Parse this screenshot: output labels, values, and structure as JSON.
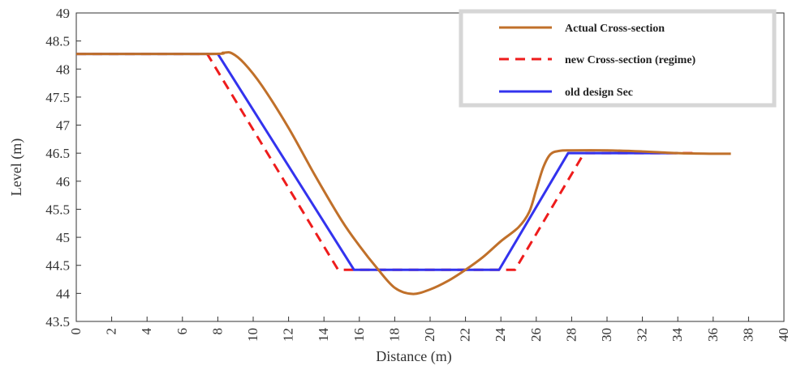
{
  "chart_data": {
    "type": "line",
    "title": "",
    "xlabel": "Distance (m)",
    "ylabel": "Level (m)",
    "xlim": [
      0,
      40
    ],
    "ylim": [
      43.5,
      49
    ],
    "x_ticks": [
      0,
      2,
      4,
      6,
      8,
      10,
      12,
      14,
      16,
      18,
      20,
      22,
      24,
      26,
      28,
      30,
      32,
      34,
      36,
      38,
      40
    ],
    "y_ticks": [
      43.5,
      44,
      44.5,
      45,
      45.5,
      46,
      46.5,
      47,
      47.5,
      48,
      48.5,
      49
    ],
    "grid": false,
    "legend_position": "top-right",
    "series": [
      {
        "name": "Actual Cross-section",
        "style": "solid",
        "color": "#c0702a",
        "smooth": true,
        "points": [
          [
            0,
            48.27
          ],
          [
            7.5,
            48.27
          ],
          [
            8.3,
            48.29
          ],
          [
            8.8,
            48.28
          ],
          [
            9.5,
            48.1
          ],
          [
            10.5,
            47.7
          ],
          [
            12,
            46.95
          ],
          [
            13.5,
            46.1
          ],
          [
            15,
            45.3
          ],
          [
            16,
            44.85
          ],
          [
            17,
            44.45
          ],
          [
            18,
            44.1
          ],
          [
            19,
            43.99
          ],
          [
            20,
            44.07
          ],
          [
            21,
            44.22
          ],
          [
            22,
            44.42
          ],
          [
            23,
            44.65
          ],
          [
            24,
            44.93
          ],
          [
            25,
            45.18
          ],
          [
            25.6,
            45.45
          ],
          [
            26,
            45.85
          ],
          [
            26.4,
            46.25
          ],
          [
            26.8,
            46.48
          ],
          [
            27.3,
            46.54
          ],
          [
            28,
            46.55
          ],
          [
            30,
            46.55
          ],
          [
            32,
            46.53
          ],
          [
            34,
            46.5
          ],
          [
            36,
            46.49
          ],
          [
            37,
            46.49
          ]
        ]
      },
      {
        "name": "new Cross-section (regime)",
        "style": "dashed",
        "color": "#ee1c1c",
        "smooth": false,
        "points": [
          [
            0,
            48.27
          ],
          [
            7.4,
            48.27
          ],
          [
            14.8,
            44.42
          ],
          [
            24.8,
            44.42
          ],
          [
            28.7,
            46.5
          ],
          [
            35,
            46.5
          ]
        ]
      },
      {
        "name": "old design  Sec",
        "style": "solid",
        "color": "#3333ee",
        "smooth": false,
        "points": [
          [
            0,
            48.27
          ],
          [
            8,
            48.27
          ],
          [
            15.7,
            44.42
          ],
          [
            23.9,
            44.42
          ],
          [
            27.8,
            46.5
          ],
          [
            34,
            46.5
          ]
        ]
      }
    ]
  }
}
